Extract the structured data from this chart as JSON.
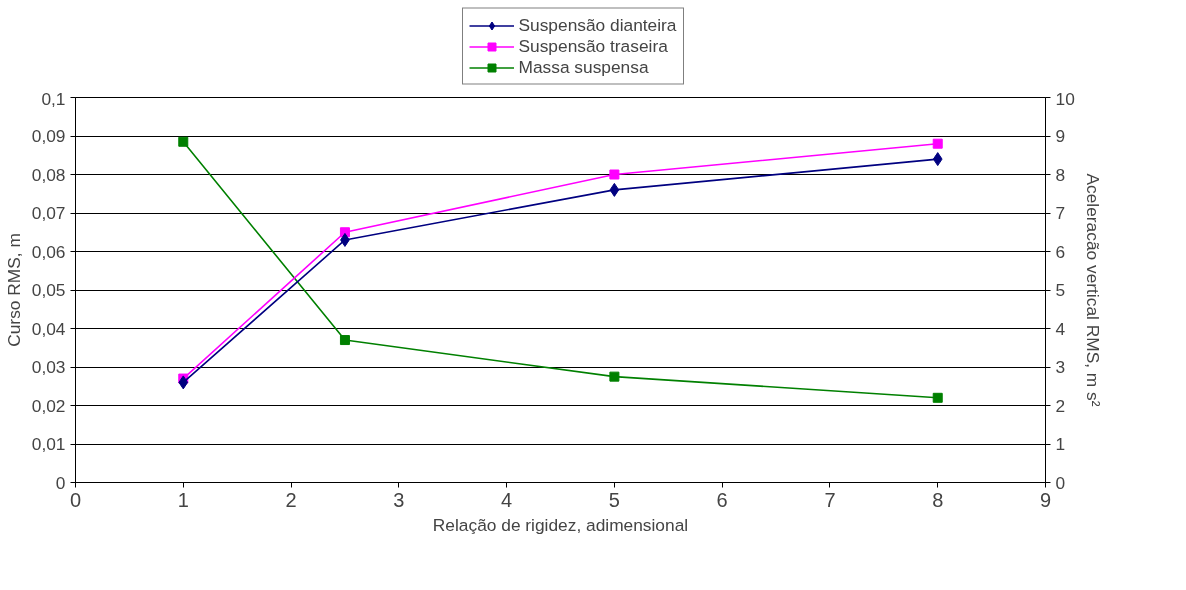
{
  "chart_data": {
    "type": "line",
    "xlabel": "Relação de rigidez, adimensional",
    "ylabel": "Curso RMS, m",
    "y2label": "Aceleracão vertical RMS, m s²",
    "x": [
      1,
      2.5,
      5,
      8
    ],
    "series": [
      {
        "name": "Suspensão dianteira",
        "color": "#000080",
        "marker": "diamond",
        "values": [
          0.026,
          0.063,
          0.076,
          0.084
        ]
      },
      {
        "name": "Suspensão traseira",
        "color": "#ff00ff",
        "marker": "square",
        "values": [
          0.027,
          0.065,
          0.08,
          0.088
        ]
      },
      {
        "name": "Massa suspensa",
        "color": "#008000",
        "marker": "square",
        "axis": "y2",
        "values": [
          8.85,
          3.7,
          2.75,
          2.2
        ]
      }
    ],
    "xlim": [
      0,
      9
    ],
    "xticks": [
      0,
      1,
      2,
      3,
      4,
      5,
      6,
      7,
      8,
      9
    ],
    "ylim": [
      0,
      0.1
    ],
    "yticks": [
      0,
      {
        "value": 0.01,
        "label": "0,01"
      },
      {
        "value": 0.02,
        "label": "0,02"
      },
      {
        "value": 0.03,
        "label": "0,03"
      },
      {
        "value": 0.04,
        "label": "0,04"
      },
      {
        "value": 0.05,
        "label": "0,05"
      },
      {
        "value": 0.06,
        "label": "0,06"
      },
      {
        "value": 0.07,
        "label": "0,07"
      },
      {
        "value": 0.08,
        "label": "0,08"
      },
      {
        "value": 0.09,
        "label": "0,09"
      },
      {
        "value": 0.1,
        "label": "0,1"
      }
    ],
    "y2lim": [
      0,
      10
    ],
    "y2ticks": [
      0,
      1,
      2,
      3,
      4,
      5,
      6,
      7,
      8,
      9,
      10
    ],
    "grid": "y",
    "legend": "top",
    "line_style": "solid"
  }
}
